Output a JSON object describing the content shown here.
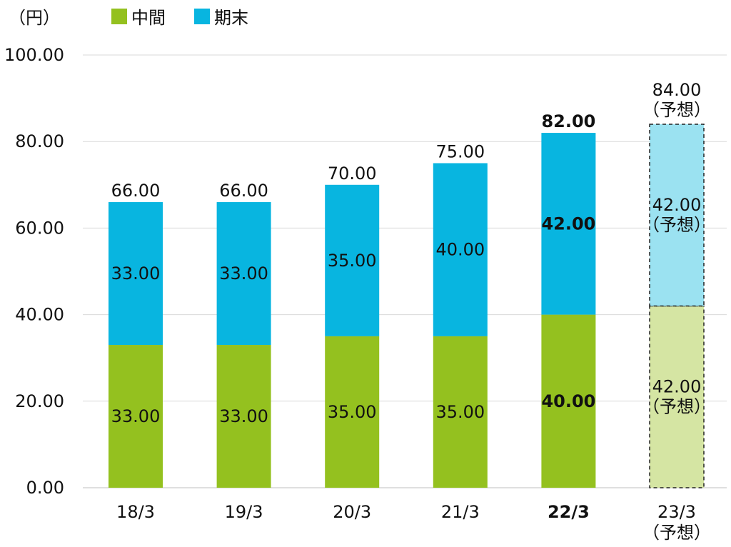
{
  "chart_data": {
    "type": "bar",
    "stacked": true,
    "unit_label": "（円）",
    "categories": [
      "18/3",
      "19/3",
      "20/3",
      "21/3",
      "22/3",
      "23/3"
    ],
    "category_sublabels": [
      "",
      "",
      "",
      "",
      "",
      "（予想）"
    ],
    "highlight_category": "22/3",
    "forecast_category": "23/3",
    "series": [
      {
        "name": "中間",
        "values": [
          33.0,
          33.0,
          35.0,
          35.0,
          40.0,
          42.0
        ],
        "color": "#94c11f",
        "forecast_color": "#d5e5a3"
      },
      {
        "name": "期末",
        "values": [
          33.0,
          33.0,
          35.0,
          40.0,
          42.0,
          42.0
        ],
        "color": "#08b5e0",
        "forecast_color": "#9be2f1"
      }
    ],
    "segment_labels": [
      [
        "33.00",
        "33.00",
        "35.00",
        "35.00",
        "40.00",
        "42.00"
      ],
      [
        "33.00",
        "33.00",
        "35.00",
        "40.00",
        "42.00",
        "42.00"
      ]
    ],
    "totals": [
      66.0,
      66.0,
      70.0,
      75.0,
      82.0,
      84.0
    ],
    "total_labels": [
      "66.00",
      "66.00",
      "70.00",
      "75.00",
      "82.00",
      "84.00"
    ],
    "forecast_note": "（予想）",
    "ylim": [
      0,
      100
    ],
    "yticks": [
      0,
      20,
      40,
      60,
      80,
      100
    ],
    "ytick_labels": [
      "0.00",
      "20.00",
      "40.00",
      "60.00",
      "80.00",
      "100.00"
    ],
    "grid": true,
    "legend_position": "top-left"
  }
}
